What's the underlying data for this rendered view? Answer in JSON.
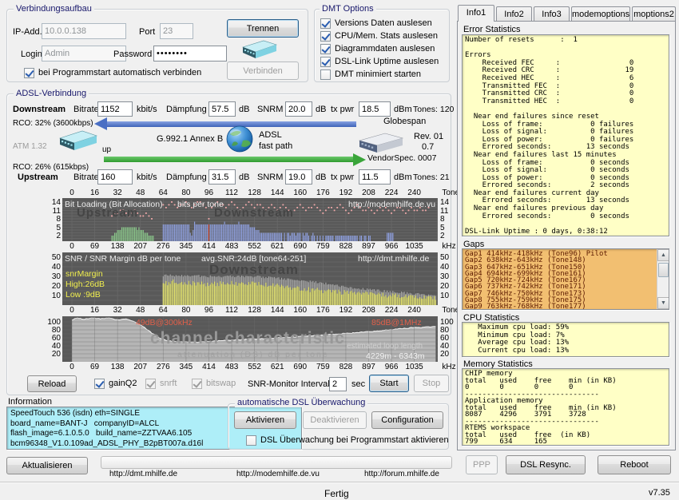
{
  "window": {
    "status": "Fertig",
    "version": "v7.35"
  },
  "connection": {
    "title": "Verbindungsaufbau",
    "ip_label": "IP-Add.",
    "ip_value": "10.0.0.138",
    "port_label": "Port",
    "port_value": "23",
    "login_label": "Login",
    "login_value": "Admin",
    "password_label": "Password",
    "password_value": "••••••••",
    "autoconnect_label": "bei Programmstart automatisch verbinden",
    "autoconnect_checked": true,
    "disconnect_button": "Trennen",
    "connect_button": "Verbinden"
  },
  "dmt_options": {
    "title": "DMT Options",
    "items": [
      {
        "label": "Versions Daten auslesen",
        "checked": true
      },
      {
        "label": "CPU/Mem. Stats auslesen",
        "checked": true
      },
      {
        "label": "Diagrammdaten auslesen",
        "checked": true
      },
      {
        "label": "DSL-Link Uptime auslesen",
        "checked": true
      },
      {
        "label": "DMT minimiert starten",
        "checked": false
      }
    ]
  },
  "tabs": [
    "Info1",
    "Info2",
    "Info3",
    "modemoptions",
    "moptions2"
  ],
  "info_panel": {
    "error_title": "Error Statistics",
    "error_lines": [
      "Number of resets      :  1",
      "",
      "Errors",
      "    Received FEC     :                0",
      "    Received CRC     :               19",
      "    Received HEC     :                6",
      "    Transmitted FEC  :                0",
      "    Transmitted CRC  :                0",
      "    Transmitted HEC  :                0",
      "",
      "  Near end failures since reset",
      "    Loss of frame:           0 failures",
      "    Loss of signal:          0 failures",
      "    Loss of power:           0 failures",
      "    Errored seconds:        13 seconds",
      "  Near end failures last 15 minutes",
      "    Loss of frame:           0 seconds",
      "    Loss of signal:          0 seconds",
      "    Loss of power:           0 seconds",
      "    Errored seconds:         2 seconds",
      "  Near end failures current day",
      "    Errored seconds:        13 seconds",
      "  Near end failures previous day",
      "    Errored seconds:         0 seconds",
      "",
      "DSL-Link Uptime : 0 days, 0:38:12"
    ],
    "gaps_title": "Gaps",
    "gaps_lines": [
      "Gap1 414kHz-418kHz (Tone96) Pilot",
      "Gap2 638kHz-643kHz (Tone148)",
      "Gap3 647kHz-651kHz (Tone150)",
      "Gap4 694kHz-699kHz (Tone161)",
      "Gap5 720kHz-724kHz (Tone167)",
      "Gap6 737kHz-742kHz (Tone171)",
      "Gap7 746kHz-750kHz (Tone173)",
      "Gap8 755kHz-759kHz (Tone175)",
      "Gap9 763kHz-768kHz (Tone177)",
      "Gap10 794kHz-799kHz (Tone184)"
    ],
    "cpu_title": "CPU Statistics",
    "cpu_lines": [
      "   Maximum cpu load: 59%",
      "   Minimum cpu load: 7%",
      "   Average cpu load: 13%",
      "   Current cpu load: 13%"
    ],
    "memory_title": "Memory Statistics",
    "memory_lines": [
      "CHIP memory",
      "total   used    free    min (in KB)",
      "0       0       0       0",
      "-------------------------------",
      "Application memory",
      "total   used    free    min (in KB)",
      "8087    4296    3791    3728",
      "-------------------------------",
      "RTEMS workspace",
      "total   used    free  (in KB)",
      "799     634     165"
    ]
  },
  "adsl": {
    "title": "ADSL-Verbindung",
    "downstream": {
      "label": "Downstream",
      "bitrate_label": "Bitrate",
      "bitrate": "1152",
      "rate_unit": "kbit/s",
      "attn_label": "Dämpfung",
      "attn": "57.5",
      "db1": "dB",
      "snrm_label": "SNRM",
      "snrm": "20.0",
      "db2": "dB",
      "txpwr_label": "tx pwr",
      "txpwr": "18.5",
      "dbm": "dBm",
      "tones": "Tones: 120",
      "rco": "RCO: 32% (3600kbps)"
    },
    "upstream": {
      "label": "Upstream",
      "bitrate_label": "Bitrate",
      "bitrate": "160",
      "rate_unit": "kbit/s",
      "attn_label": "Dämpfung",
      "attn": "31.5",
      "db1": "dB",
      "snrm_label": "SNRM",
      "snrm": "19.0",
      "db2": "dB",
      "txpwr_label": "tx pwr",
      "txpwr": "11.5",
      "dbm": "dBm",
      "tones": "Tones: 21",
      "rco": "RCO: 26% (615kbps)"
    },
    "middle": {
      "atm": "ATM  1.32",
      "up": "up",
      "standard": "G.992.1 Annex B",
      "mode1": "ADSL",
      "mode2": "fast path",
      "vendor": "Globespan",
      "rev1": "Rev. 01",
      "rev2": "0.7",
      "vendorspec": "VendorSpec. 0007"
    },
    "controls": {
      "reload": "Reload",
      "gainq2": "gainQ2",
      "snrft": "snrft",
      "bitswap": "bitswap",
      "interval_label": "SNR-Monitor Interval:",
      "interval": "2",
      "sec": "sec",
      "start": "Start",
      "stop": "Stop"
    }
  },
  "information": {
    "title": "Information",
    "lines": [
      "SpeedTouch 536 (isdn) eth=SINGLE",
      "board_name=BANT-J   companyID=ALCL",
      "flash_image=6.1.0.5.0   build_name=ZZTVAA6.105",
      "bcm96348_V1.0.109ad_ADSL_PHY_B2pBT007a.d16l"
    ]
  },
  "monitoring": {
    "title": "automatische DSL Überwachung",
    "activate": "Aktivieren",
    "deactivate": "Deaktivieren",
    "config": "Configuration",
    "startup_label": "DSL Überwachung bei Programmstart aktivieren",
    "startup_checked": false
  },
  "bottom": {
    "refresh": "Aktualisieren",
    "links": [
      "http://dmt.mhilfe.de",
      "http://modemhilfe.de.vu",
      "http://forum.mhilfe.de"
    ],
    "ppp": "PPP",
    "resync": "DSL Resync.",
    "reboot": "Reboot"
  },
  "chart_axes": {
    "tone_ticks": [
      0,
      16,
      32,
      48,
      64,
      80,
      96,
      112,
      128,
      144,
      160,
      176,
      192,
      208,
      224,
      240
    ],
    "tone_unit": "Tone",
    "khz_ticks": [
      0,
      69,
      138,
      207,
      276,
      345,
      414,
      483,
      552,
      621,
      690,
      759,
      828,
      897,
      966,
      1035
    ],
    "khz_unit": "kHz"
  },
  "chart_data": [
    {
      "type": "bar",
      "title": "Bit Loading (Bit Allocation)",
      "subtitle": "bits per tone",
      "url": "http://modemhilfe.de.vu",
      "watermark_left": "Upstream",
      "watermark_right": "Downstream",
      "xlabel": "Tone",
      "x_min": 0,
      "x_max": 255,
      "ylim": [
        0,
        15
      ],
      "y_ticks": [
        14,
        11,
        8,
        5,
        2
      ],
      "bg": "#595959",
      "pilot_tone": 96,
      "pilot_color": "#d9503c",
      "marker_color": "#f2a9a9",
      "series": [
        {
          "name": "upstream bits",
          "color": "#8ccc8c",
          "start": 28,
          "values": [
            2,
            2,
            3,
            3,
            4,
            4,
            4,
            5,
            5,
            5,
            5,
            5,
            5,
            5,
            5,
            5,
            5,
            5,
            4,
            5,
            4,
            4,
            4,
            3,
            3,
            3,
            2,
            2,
            2,
            2
          ]
        },
        {
          "name": "downstream bits",
          "color": "#91a3e6",
          "start": 64,
          "values": [
            6,
            6,
            6,
            6,
            6,
            6,
            6,
            6,
            6,
            6,
            6,
            6,
            6,
            6,
            6,
            6,
            6,
            6,
            6,
            3,
            2,
            4,
            7,
            6,
            6,
            6,
            6,
            6,
            6,
            6,
            6,
            6,
            6,
            6,
            6,
            6,
            6,
            6,
            6,
            6,
            6,
            6,
            6,
            7,
            6,
            6,
            6,
            6,
            6,
            6,
            6,
            6,
            6,
            7,
            6,
            6,
            6,
            6,
            6,
            6,
            6,
            5,
            5,
            5,
            5,
            4,
            4,
            4,
            3,
            3,
            3,
            3,
            3,
            3,
            3,
            3,
            3,
            3,
            3,
            3,
            3,
            3,
            3,
            3,
            0,
            3,
            0,
            3,
            3,
            2,
            3,
            3,
            3,
            2,
            3,
            3,
            3,
            0,
            3,
            2,
            3,
            3,
            2,
            0,
            2,
            3,
            2,
            0,
            2,
            0,
            2,
            0,
            2,
            0,
            2,
            2,
            2,
            2,
            2,
            2,
            0,
            2,
            2,
            2,
            2,
            2,
            2,
            2,
            2,
            2,
            2,
            2,
            2,
            2,
            2,
            2,
            2,
            0,
            2,
            2,
            0,
            2,
            2,
            0,
            2,
            2,
            0,
            0,
            0,
            0,
            0,
            0,
            0,
            0,
            0,
            0,
            0,
            3,
            3,
            3,
            3,
            3
          ]
        }
      ],
      "markers": [
        {
          "name": "max bits upstream",
          "start": 28,
          "step": 2,
          "values": [
            9,
            10,
            10,
            11,
            11,
            10,
            9,
            10,
            11,
            10,
            9,
            9,
            10,
            9,
            8
          ]
        },
        {
          "name": "max bits downstream",
          "start": 64,
          "step": 2,
          "values": [
            13,
            12,
            13,
            14,
            13,
            12,
            13,
            13,
            14,
            13,
            12,
            13,
            14,
            14,
            13,
            12,
            8,
            12,
            13,
            14,
            13,
            13,
            12,
            13,
            14,
            13,
            12,
            11,
            12,
            13,
            14,
            13,
            12,
            13,
            13,
            12,
            11,
            12,
            13,
            12,
            11,
            12,
            13,
            12,
            11,
            10,
            11,
            12,
            13,
            12,
            11,
            12,
            12,
            13,
            12,
            11,
            10,
            11,
            12,
            12,
            11,
            12,
            13,
            12,
            11,
            10,
            11,
            12,
            13,
            12,
            11,
            11,
            12,
            11,
            10,
            11,
            12,
            11,
            12,
            11,
            10,
            11,
            12,
            12,
            11,
            10,
            11,
            12,
            11,
            11,
            12,
            11,
            11,
            12
          ]
        }
      ]
    },
    {
      "type": "bar",
      "title": "SNR / SNR Margin  dB per tone",
      "annotation": "avg.SNR:24dB  [tone64-251]",
      "url": "http://dmt.mhilfe.de",
      "left_labels": [
        "snrMargin",
        "High:26dB",
        "Low :9dB"
      ],
      "watermark": "Downstream",
      "xlabel": "Tone",
      "ylim": [
        0,
        55
      ],
      "y_ticks": [
        50,
        40,
        30,
        20,
        10
      ],
      "series": [
        {
          "name": "SNR",
          "color": "#a9a9a9",
          "jitter": 1.2,
          "points": [
            [
              64,
              31
            ],
            [
              80,
              31
            ],
            [
              96,
              30
            ],
            [
              112,
              30
            ],
            [
              128,
              30
            ],
            [
              144,
              28
            ],
            [
              160,
              26
            ],
            [
              176,
              23
            ],
            [
              192,
              19
            ],
            [
              208,
              16
            ],
            [
              224,
              14
            ],
            [
              240,
              12
            ],
            [
              255,
              10
            ]
          ]
        },
        {
          "name": "SNR Margin",
          "color": "#ecec6a",
          "jitter": 2.6,
          "points": [
            [
              64,
              22
            ],
            [
              72,
              25
            ],
            [
              80,
              23
            ],
            [
              96,
              22
            ],
            [
              112,
              23
            ],
            [
              128,
              22
            ],
            [
              144,
              20
            ],
            [
              160,
              17
            ],
            [
              176,
              15
            ],
            [
              192,
              13
            ],
            [
              208,
              12
            ],
            [
              224,
              10
            ],
            [
              240,
              9
            ],
            [
              255,
              8
            ]
          ]
        }
      ]
    },
    {
      "type": "area",
      "watermark": "channel characteristic",
      "subtitle": "attenuation (DS)  dB per tone",
      "annotation_left": "49dB@300kHz",
      "annotation_right": "85dB@1MHz",
      "loop_length_label": "estimated loop length",
      "loop_length": "4229m - 6343m",
      "xlabel": "kHz",
      "ylim": [
        0,
        110
      ],
      "y_ticks": [
        100,
        80,
        60,
        40,
        20
      ],
      "series": [
        {
          "name": "attenuation DS",
          "color": "#b5b5b5",
          "line_color": "#fafafa",
          "jitter": 1,
          "points": [
            [
              0,
              105
            ],
            [
              4,
              110
            ],
            [
              8,
              107
            ],
            [
              14,
              110
            ],
            [
              20,
              108
            ],
            [
              26,
              110
            ],
            [
              32,
              105
            ],
            [
              38,
              107
            ],
            [
              44,
              100
            ],
            [
              50,
              88
            ],
            [
              56,
              72
            ],
            [
              62,
              58
            ],
            [
              68,
              52
            ],
            [
              76,
              50
            ],
            [
              84,
              49
            ],
            [
              92,
              50
            ],
            [
              100,
              52
            ],
            [
              116,
              55
            ],
            [
              132,
              58
            ],
            [
              148,
              61
            ],
            [
              164,
              64
            ],
            [
              180,
              68
            ],
            [
              196,
              72
            ],
            [
              212,
              77
            ],
            [
              228,
              82
            ],
            [
              240,
              86
            ],
            [
              255,
              88
            ]
          ]
        }
      ]
    }
  ]
}
